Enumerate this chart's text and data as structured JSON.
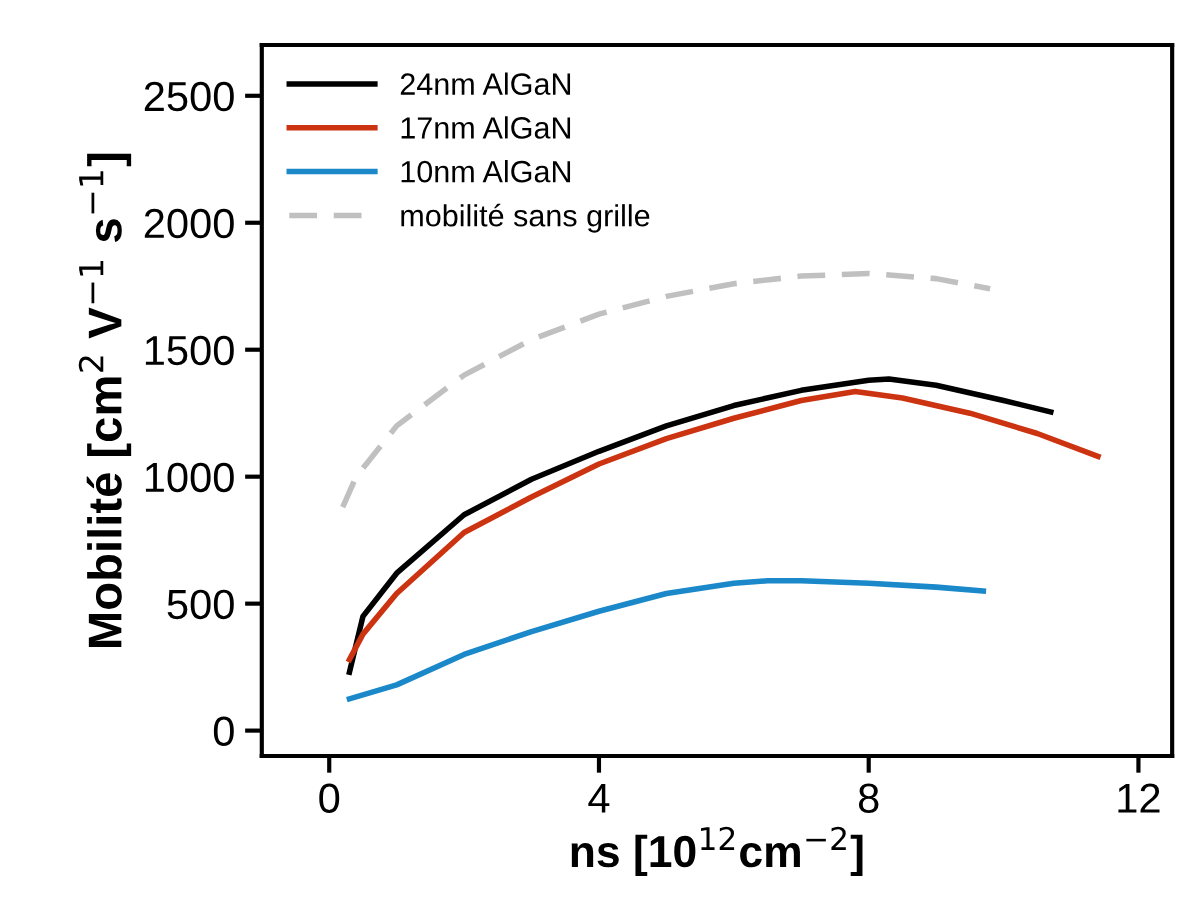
{
  "chart_data": {
    "type": "line",
    "xlabel": "ns [10$^{12}$cm$^{−2}$]",
    "ylabel": "Mobilité [cm$^{2}$ V$^{−1}$ s$^{−1}$]",
    "xlim": [
      -1,
      12.5
    ],
    "ylim": [
      -100,
      2700
    ],
    "xticks": [
      0,
      4,
      8,
      12
    ],
    "yticks": [
      0,
      500,
      1000,
      1500,
      2000,
      2500
    ],
    "grid": false,
    "legend": "top left",
    "series": [
      {
        "name": "24nm AlGaN",
        "color": "#000000",
        "line_style": "solid",
        "x": [
          0.3,
          0.5,
          1,
          2,
          3,
          4,
          5,
          6,
          7,
          8,
          8.3,
          9,
          10,
          10.7
        ],
        "values": [
          230,
          450,
          620,
          850,
          990,
          1100,
          1200,
          1280,
          1340,
          1380,
          1385,
          1360,
          1300,
          1255
        ]
      },
      {
        "name": "17nm AlGaN",
        "color": "#cc3311",
        "line_style": "solid",
        "x": [
          0.3,
          0.5,
          1,
          2,
          3,
          4,
          5,
          6,
          7,
          7.8,
          8.5,
          9.5,
          10.5,
          11.4
        ],
        "values": [
          280,
          380,
          540,
          780,
          920,
          1050,
          1150,
          1230,
          1300,
          1335,
          1310,
          1250,
          1170,
          1080
        ]
      },
      {
        "name": "10nm AlGaN",
        "color": "#1a88c9",
        "line_style": "solid",
        "x": [
          0.3,
          1,
          2,
          3,
          4,
          5,
          6,
          6.5,
          7,
          8,
          9,
          9.7
        ],
        "values": [
          125,
          180,
          300,
          390,
          470,
          540,
          580,
          590,
          590,
          580,
          565,
          550
        ]
      },
      {
        "name": "mobilité sans grille",
        "color": "#c0c0c0",
        "line_style": "dashed",
        "x": [
          0.2,
          0.4,
          1,
          2,
          3,
          4,
          5,
          6,
          7,
          8,
          9,
          9.8
        ],
        "values": [
          880,
          1000,
          1200,
          1400,
          1540,
          1640,
          1710,
          1760,
          1790,
          1800,
          1780,
          1740
        ]
      }
    ]
  }
}
